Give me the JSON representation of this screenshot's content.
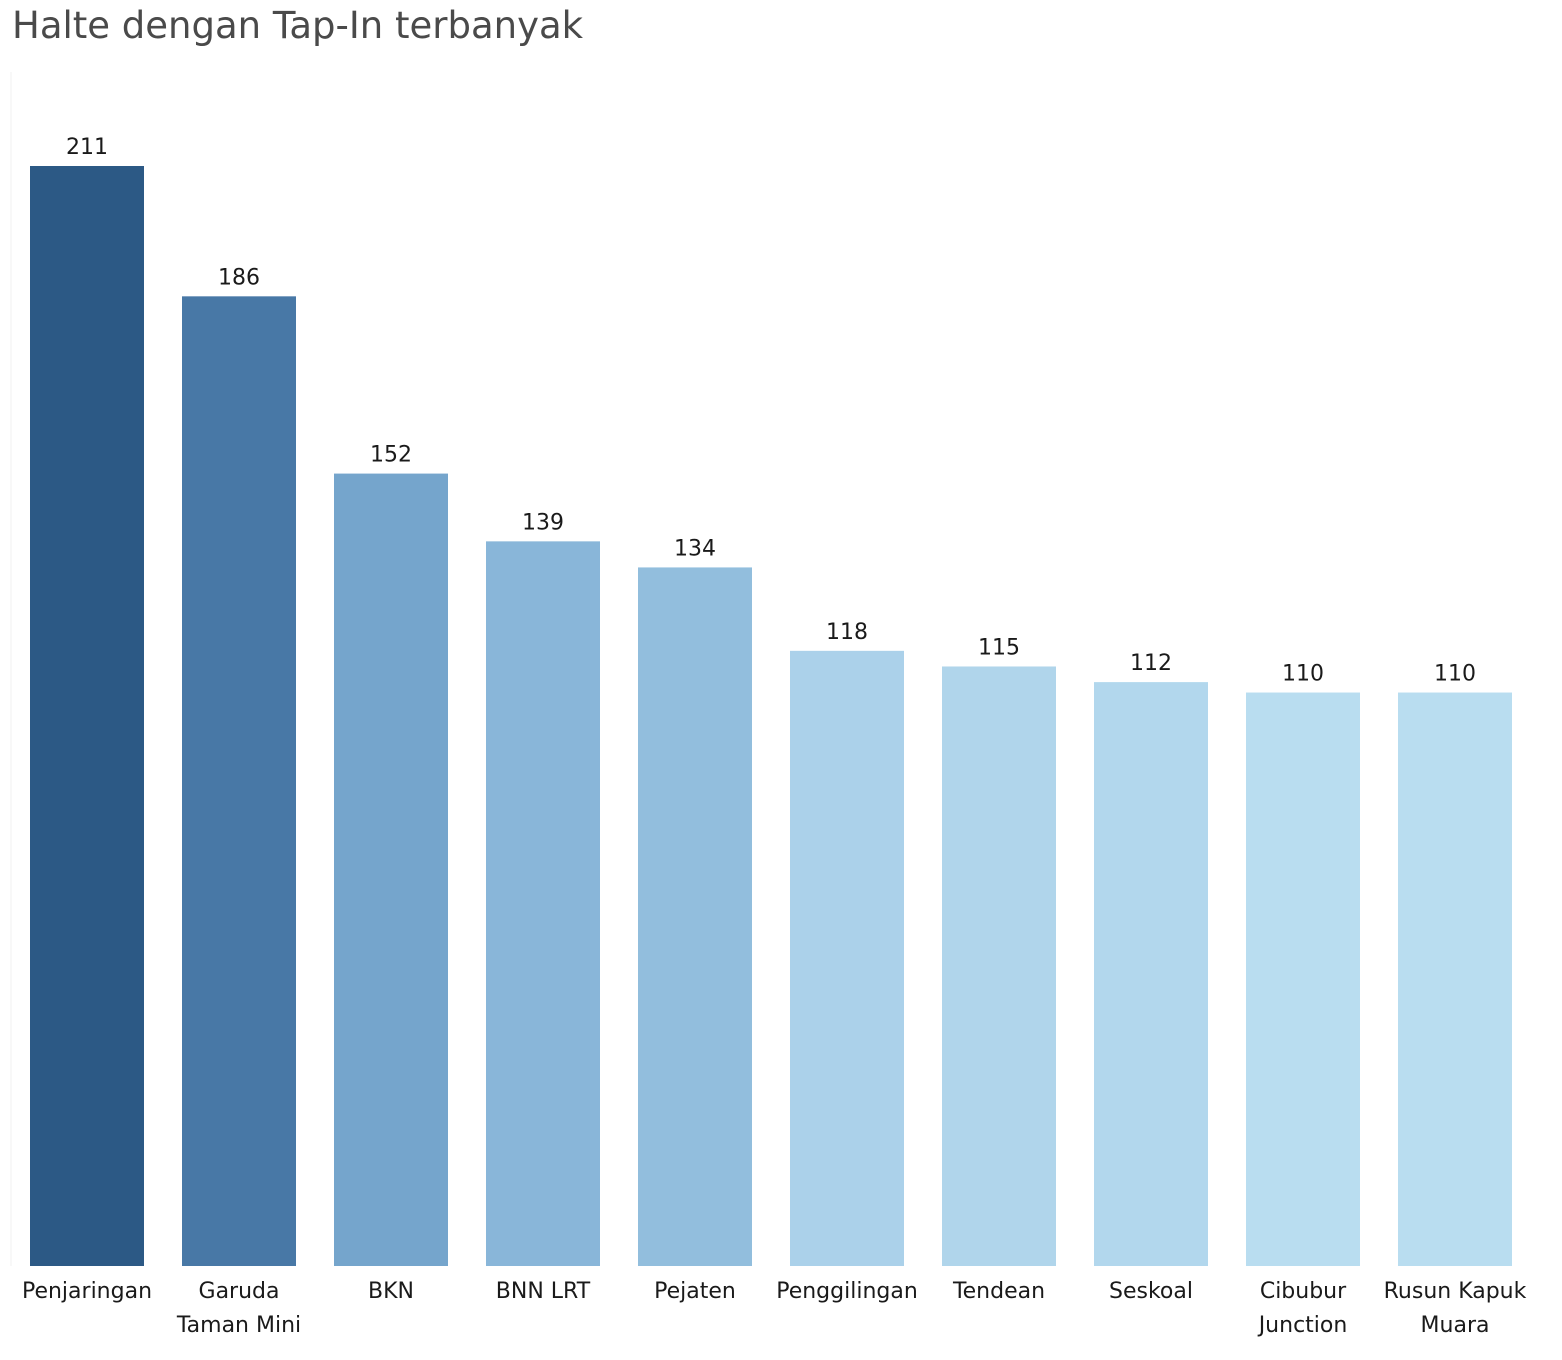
{
  "chart_data": {
    "type": "bar",
    "title": "Halte dengan Tap-In terbanyak",
    "xlabel": "",
    "ylabel": "",
    "ylim": [
      0,
      211
    ],
    "grid": false,
    "categories": [
      [
        "Penjaringan"
      ],
      [
        "Garuda",
        "Taman Mini"
      ],
      [
        "BKN"
      ],
      [
        "BNN LRT"
      ],
      [
        "Pejaten"
      ],
      [
        "Penggilingan"
      ],
      [
        "Tendean"
      ],
      [
        "Seskoal"
      ],
      [
        "Cibubur",
        "Junction"
      ],
      [
        "Rusun Kapuk",
        "Muara"
      ]
    ],
    "values": [
      211,
      186,
      152,
      139,
      134,
      118,
      115,
      112,
      110,
      110
    ],
    "value_labels": [
      "211",
      "186",
      "152",
      "139",
      "134",
      "118",
      "115",
      "112",
      "110",
      "110"
    ],
    "colors": [
      "#2c5985",
      "#4878a6",
      "#75a5cc",
      "#89b6d9",
      "#92bedd",
      "#abd1ea",
      "#b0d5eb",
      "#b2d7ed",
      "#b9ddf0",
      "#b9ddf0"
    ]
  }
}
